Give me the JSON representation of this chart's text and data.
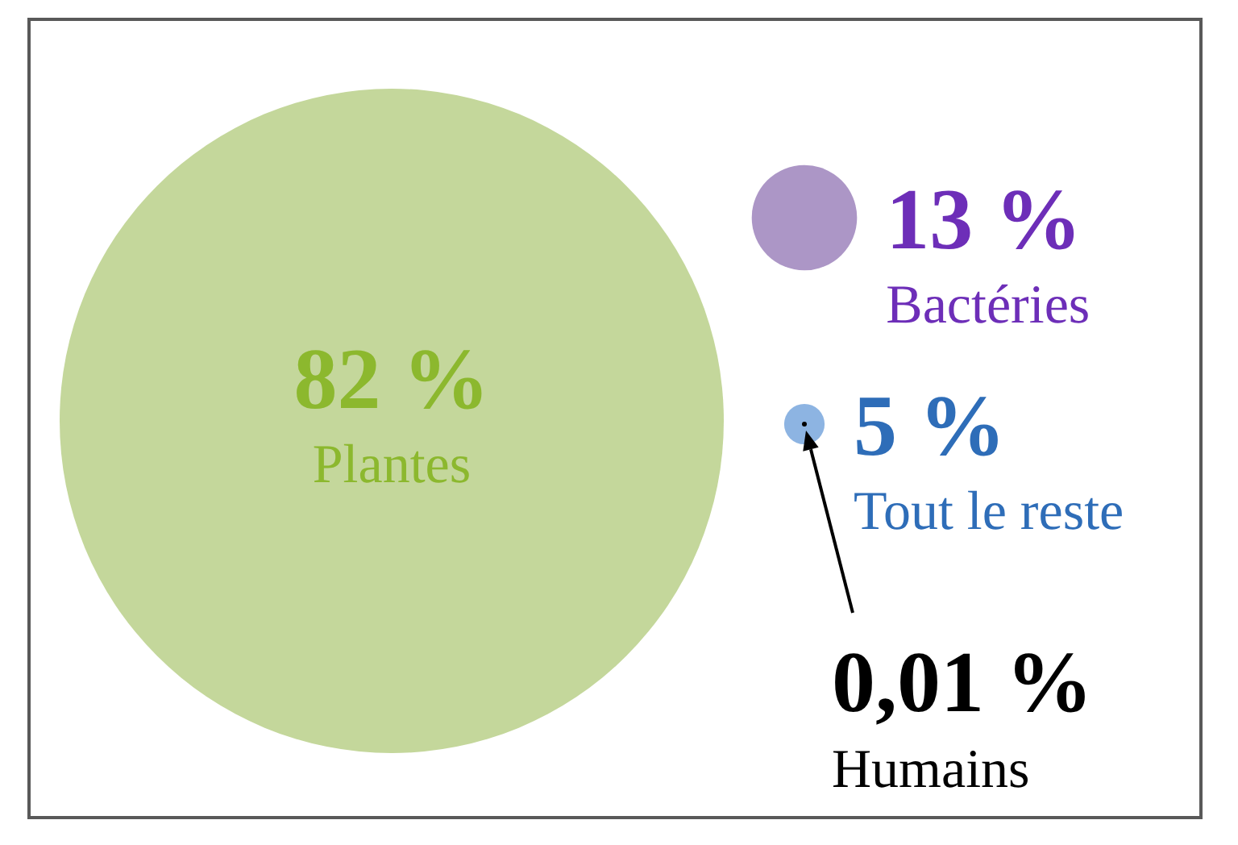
{
  "chart_data": {
    "type": "other",
    "categories": [
      "Plantes",
      "Bactéries",
      "Tout le reste",
      "Humains"
    ],
    "values": [
      82,
      13,
      5,
      0.01
    ],
    "value_labels": [
      "82 %",
      "13 %",
      "5 %",
      "0,01 %"
    ],
    "colors": [
      "#c4d79b",
      "#ac96c6",
      "#8db4e2",
      "#000000"
    ]
  }
}
